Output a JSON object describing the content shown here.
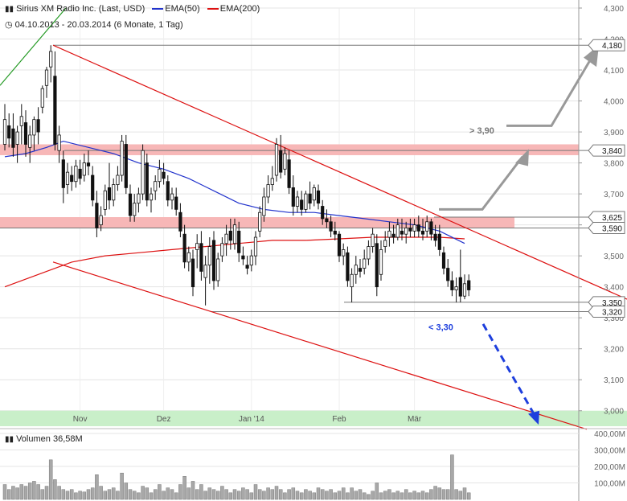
{
  "header": {
    "instrument": "Sirius XM Radio Inc. (Last, USD)",
    "legend_ema50": "EMA(50)",
    "legend_ema200": "EMA(200)",
    "date_range": "04.10.2013 - 20.03.2014 (6 Monate, 1 Tag)",
    "volume_label": "Volumen",
    "volume_value": "36,58M"
  },
  "colors": {
    "ema50": "#2233cc",
    "ema200": "#dd1111",
    "trend": "#dd1111",
    "green_line": "#229922",
    "zone": "#f7b7b7",
    "support_zone": "#c9efc9",
    "arrow_grey": "#999999",
    "arrow_blue": "#1e3fdd",
    "candle": "#111111",
    "volume_bar": "#a8a8a8"
  },
  "chart_data": {
    "type": "candlestick",
    "x_axis_labels": [
      "Nov",
      "Dez",
      "Jan '14",
      "Feb",
      "Mär"
    ],
    "y_axis_ticks": [
      "4,300",
      "4,200",
      "4,100",
      "4,000",
      "3,900",
      "3,800",
      "3,700",
      "3,600",
      "3,500",
      "3,400",
      "3,300",
      "3,200",
      "3,100",
      "3,000"
    ],
    "y_range": [
      2.95,
      4.3
    ],
    "price_labels": [
      "4,180",
      "3,840",
      "3,625",
      "3,590",
      "3,350",
      "3,320"
    ],
    "annotations": [
      "> 3,90",
      "< 3,30"
    ],
    "resistance_zones": [
      [
        3.825,
        3.86
      ],
      [
        3.59,
        3.625
      ]
    ],
    "support_zone": [
      2.95,
      3.0
    ],
    "volume_axis_ticks": [
      "400,00M",
      "300,00M",
      "200,00M",
      "100,00M"
    ],
    "volume_range_millions": [
      0,
      400
    ],
    "candles": [
      {
        "o": 3.86,
        "h": 3.99,
        "l": 3.84,
        "c": 3.94
      },
      {
        "o": 3.92,
        "h": 3.96,
        "l": 3.85,
        "c": 3.88
      },
      {
        "o": 3.91,
        "h": 3.96,
        "l": 3.82,
        "c": 3.85
      },
      {
        "o": 3.86,
        "h": 3.92,
        "l": 3.8,
        "c": 3.9
      },
      {
        "o": 3.92,
        "h": 3.99,
        "l": 3.86,
        "c": 3.95
      },
      {
        "o": 3.93,
        "h": 3.97,
        "l": 3.82,
        "c": 3.86
      },
      {
        "o": 3.85,
        "h": 3.92,
        "l": 3.8,
        "c": 3.89
      },
      {
        "o": 3.89,
        "h": 3.95,
        "l": 3.84,
        "c": 3.94
      },
      {
        "o": 3.94,
        "h": 3.98,
        "l": 3.86,
        "c": 3.9
      },
      {
        "o": 3.98,
        "h": 4.05,
        "l": 3.96,
        "c": 4.04
      },
      {
        "o": 4.05,
        "h": 4.11,
        "l": 4.01,
        "c": 4.1
      },
      {
        "o": 4.11,
        "h": 4.18,
        "l": 4.06,
        "c": 4.16
      },
      {
        "o": 4.08,
        "h": 4.16,
        "l": 3.84,
        "c": 3.86
      },
      {
        "o": 3.84,
        "h": 3.92,
        "l": 3.8,
        "c": 3.89
      },
      {
        "o": 3.81,
        "h": 3.84,
        "l": 3.67,
        "c": 3.72
      },
      {
        "o": 3.73,
        "h": 3.8,
        "l": 3.7,
        "c": 3.77
      },
      {
        "o": 3.76,
        "h": 3.79,
        "l": 3.71,
        "c": 3.74
      },
      {
        "o": 3.74,
        "h": 3.81,
        "l": 3.72,
        "c": 3.79
      },
      {
        "o": 3.78,
        "h": 3.81,
        "l": 3.73,
        "c": 3.75
      },
      {
        "o": 3.76,
        "h": 3.83,
        "l": 3.74,
        "c": 3.8
      },
      {
        "o": 3.8,
        "h": 3.84,
        "l": 3.76,
        "c": 3.79
      },
      {
        "o": 3.76,
        "h": 3.79,
        "l": 3.66,
        "c": 3.68
      },
      {
        "o": 3.67,
        "h": 3.71,
        "l": 3.56,
        "c": 3.59
      },
      {
        "o": 3.6,
        "h": 3.66,
        "l": 3.58,
        "c": 3.63
      },
      {
        "o": 3.65,
        "h": 3.73,
        "l": 3.63,
        "c": 3.71
      },
      {
        "o": 3.72,
        "h": 3.8,
        "l": 3.65,
        "c": 3.68
      },
      {
        "o": 3.68,
        "h": 3.75,
        "l": 3.66,
        "c": 3.73
      },
      {
        "o": 3.73,
        "h": 3.79,
        "l": 3.71,
        "c": 3.76
      },
      {
        "o": 3.76,
        "h": 3.89,
        "l": 3.74,
        "c": 3.87
      },
      {
        "o": 3.86,
        "h": 3.89,
        "l": 3.7,
        "c": 3.72
      },
      {
        "o": 3.7,
        "h": 3.73,
        "l": 3.61,
        "c": 3.63
      },
      {
        "o": 3.63,
        "h": 3.7,
        "l": 3.61,
        "c": 3.67
      },
      {
        "o": 3.67,
        "h": 3.72,
        "l": 3.64,
        "c": 3.7
      },
      {
        "o": 3.7,
        "h": 3.86,
        "l": 3.68,
        "c": 3.84
      },
      {
        "o": 3.8,
        "h": 3.83,
        "l": 3.66,
        "c": 3.68
      },
      {
        "o": 3.68,
        "h": 3.72,
        "l": 3.64,
        "c": 3.7
      },
      {
        "o": 3.71,
        "h": 3.76,
        "l": 3.68,
        "c": 3.74
      },
      {
        "o": 3.74,
        "h": 3.81,
        "l": 3.72,
        "c": 3.78
      },
      {
        "o": 3.77,
        "h": 3.8,
        "l": 3.73,
        "c": 3.75
      },
      {
        "o": 3.74,
        "h": 3.76,
        "l": 3.66,
        "c": 3.68
      },
      {
        "o": 3.68,
        "h": 3.72,
        "l": 3.65,
        "c": 3.7
      },
      {
        "o": 3.69,
        "h": 3.72,
        "l": 3.63,
        "c": 3.65
      },
      {
        "o": 3.64,
        "h": 3.67,
        "l": 3.56,
        "c": 3.58
      },
      {
        "o": 3.57,
        "h": 3.6,
        "l": 3.46,
        "c": 3.48
      },
      {
        "o": 3.48,
        "h": 3.53,
        "l": 3.45,
        "c": 3.51
      },
      {
        "o": 3.49,
        "h": 3.52,
        "l": 3.37,
        "c": 3.4
      },
      {
        "o": 3.52,
        "h": 3.57,
        "l": 3.46,
        "c": 3.54
      },
      {
        "o": 3.54,
        "h": 3.58,
        "l": 3.42,
        "c": 3.45
      },
      {
        "o": 3.43,
        "h": 3.5,
        "l": 3.34,
        "c": 3.47
      },
      {
        "o": 3.47,
        "h": 3.56,
        "l": 3.41,
        "c": 3.53
      },
      {
        "o": 3.55,
        "h": 3.58,
        "l": 3.39,
        "c": 3.42
      },
      {
        "o": 3.42,
        "h": 3.51,
        "l": 3.4,
        "c": 3.49
      },
      {
        "o": 3.5,
        "h": 3.56,
        "l": 3.48,
        "c": 3.54
      },
      {
        "o": 3.54,
        "h": 3.6,
        "l": 3.5,
        "c": 3.57
      },
      {
        "o": 3.58,
        "h": 3.62,
        "l": 3.52,
        "c": 3.55
      },
      {
        "o": 3.54,
        "h": 3.62,
        "l": 3.52,
        "c": 3.6
      },
      {
        "o": 3.58,
        "h": 3.61,
        "l": 3.48,
        "c": 3.51
      },
      {
        "o": 3.5,
        "h": 3.53,
        "l": 3.47,
        "c": 3.49
      },
      {
        "o": 3.47,
        "h": 3.5,
        "l": 3.44,
        "c": 3.46
      },
      {
        "o": 3.47,
        "h": 3.52,
        "l": 3.45,
        "c": 3.5
      },
      {
        "o": 3.5,
        "h": 3.58,
        "l": 3.47,
        "c": 3.56
      },
      {
        "o": 3.58,
        "h": 3.66,
        "l": 3.56,
        "c": 3.64
      },
      {
        "o": 3.63,
        "h": 3.72,
        "l": 3.61,
        "c": 3.69
      },
      {
        "o": 3.69,
        "h": 3.76,
        "l": 3.67,
        "c": 3.73
      },
      {
        "o": 3.73,
        "h": 3.79,
        "l": 3.71,
        "c": 3.75
      },
      {
        "o": 3.76,
        "h": 3.88,
        "l": 3.74,
        "c": 3.86
      },
      {
        "o": 3.84,
        "h": 3.89,
        "l": 3.75,
        "c": 3.77
      },
      {
        "o": 3.78,
        "h": 3.85,
        "l": 3.76,
        "c": 3.83
      },
      {
        "o": 3.81,
        "h": 3.84,
        "l": 3.7,
        "c": 3.72
      },
      {
        "o": 3.72,
        "h": 3.76,
        "l": 3.63,
        "c": 3.66
      },
      {
        "o": 3.66,
        "h": 3.71,
        "l": 3.64,
        "c": 3.69
      },
      {
        "o": 3.68,
        "h": 3.71,
        "l": 3.63,
        "c": 3.65
      },
      {
        "o": 3.65,
        "h": 3.71,
        "l": 3.64,
        "c": 3.7
      },
      {
        "o": 3.7,
        "h": 3.74,
        "l": 3.65,
        "c": 3.67
      },
      {
        "o": 3.68,
        "h": 3.73,
        "l": 3.66,
        "c": 3.72
      },
      {
        "o": 3.71,
        "h": 3.73,
        "l": 3.65,
        "c": 3.67
      },
      {
        "o": 3.66,
        "h": 3.68,
        "l": 3.6,
        "c": 3.62
      },
      {
        "o": 3.62,
        "h": 3.65,
        "l": 3.59,
        "c": 3.61
      },
      {
        "o": 3.61,
        "h": 3.63,
        "l": 3.56,
        "c": 3.58
      },
      {
        "o": 3.58,
        "h": 3.61,
        "l": 3.55,
        "c": 3.57
      },
      {
        "o": 3.57,
        "h": 3.58,
        "l": 3.48,
        "c": 3.5
      },
      {
        "o": 3.5,
        "h": 3.54,
        "l": 3.47,
        "c": 3.52
      },
      {
        "o": 3.51,
        "h": 3.53,
        "l": 3.4,
        "c": 3.42
      },
      {
        "o": 3.4,
        "h": 3.46,
        "l": 3.35,
        "c": 3.44
      },
      {
        "o": 3.44,
        "h": 3.5,
        "l": 3.41,
        "c": 3.47
      },
      {
        "o": 3.46,
        "h": 3.49,
        "l": 3.43,
        "c": 3.45
      },
      {
        "o": 3.46,
        "h": 3.52,
        "l": 3.44,
        "c": 3.49
      },
      {
        "o": 3.49,
        "h": 3.55,
        "l": 3.47,
        "c": 3.53
      },
      {
        "o": 3.53,
        "h": 3.59,
        "l": 3.51,
        "c": 3.57
      },
      {
        "o": 3.54,
        "h": 3.57,
        "l": 3.37,
        "c": 3.4
      },
      {
        "o": 3.44,
        "h": 3.55,
        "l": 3.42,
        "c": 3.52
      },
      {
        "o": 3.53,
        "h": 3.58,
        "l": 3.51,
        "c": 3.55
      },
      {
        "o": 3.56,
        "h": 3.61,
        "l": 3.53,
        "c": 3.58
      },
      {
        "o": 3.57,
        "h": 3.6,
        "l": 3.54,
        "c": 3.56
      },
      {
        "o": 3.56,
        "h": 3.62,
        "l": 3.55,
        "c": 3.6
      },
      {
        "o": 3.58,
        "h": 3.62,
        "l": 3.55,
        "c": 3.57
      },
      {
        "o": 3.57,
        "h": 3.61,
        "l": 3.54,
        "c": 3.59
      },
      {
        "o": 3.59,
        "h": 3.62,
        "l": 3.56,
        "c": 3.58
      },
      {
        "o": 3.58,
        "h": 3.62,
        "l": 3.56,
        "c": 3.6
      },
      {
        "o": 3.6,
        "h": 3.63,
        "l": 3.56,
        "c": 3.58
      },
      {
        "o": 3.58,
        "h": 3.62,
        "l": 3.55,
        "c": 3.57
      },
      {
        "o": 3.58,
        "h": 3.63,
        "l": 3.56,
        "c": 3.61
      },
      {
        "o": 3.61,
        "h": 3.62,
        "l": 3.55,
        "c": 3.57
      },
      {
        "o": 3.57,
        "h": 3.6,
        "l": 3.53,
        "c": 3.55
      },
      {
        "o": 3.57,
        "h": 3.6,
        "l": 3.5,
        "c": 3.52
      },
      {
        "o": 3.51,
        "h": 3.53,
        "l": 3.44,
        "c": 3.46
      },
      {
        "o": 3.46,
        "h": 3.49,
        "l": 3.4,
        "c": 3.42
      },
      {
        "o": 3.42,
        "h": 3.45,
        "l": 3.37,
        "c": 3.39
      },
      {
        "o": 3.39,
        "h": 3.43,
        "l": 3.35,
        "c": 3.4
      },
      {
        "o": 3.43,
        "h": 3.52,
        "l": 3.35,
        "c": 3.37
      },
      {
        "o": 3.37,
        "h": 3.44,
        "l": 3.36,
        "c": 3.41
      },
      {
        "o": 3.42,
        "h": 3.44,
        "l": 3.37,
        "c": 3.39
      }
    ],
    "ema50": [
      [
        0,
        3.82
      ],
      [
        5,
        3.83
      ],
      [
        10,
        3.85
      ],
      [
        14,
        3.87
      ],
      [
        20,
        3.85
      ],
      [
        26,
        3.83
      ],
      [
        32,
        3.8
      ],
      [
        38,
        3.78
      ],
      [
        44,
        3.75
      ],
      [
        50,
        3.71
      ],
      [
        56,
        3.67
      ],
      [
        62,
        3.65
      ],
      [
        68,
        3.64
      ],
      [
        74,
        3.64
      ],
      [
        80,
        3.63
      ],
      [
        86,
        3.62
      ],
      [
        92,
        3.61
      ],
      [
        98,
        3.6
      ],
      [
        104,
        3.58
      ],
      [
        110,
        3.54
      ]
    ],
    "ema200": [
      [
        0,
        3.4
      ],
      [
        8,
        3.44
      ],
      [
        16,
        3.48
      ],
      [
        24,
        3.5
      ],
      [
        32,
        3.51
      ],
      [
        40,
        3.52
      ],
      [
        48,
        3.53
      ],
      [
        56,
        3.54
      ],
      [
        64,
        3.55
      ],
      [
        72,
        3.55
      ],
      [
        80,
        3.555
      ],
      [
        88,
        3.56
      ],
      [
        96,
        3.56
      ],
      [
        104,
        3.56
      ],
      [
        110,
        3.555
      ]
    ],
    "volume_millions": [
      90,
      60,
      80,
      70,
      90,
      80,
      100,
      110,
      90,
      60,
      80,
      240,
      120,
      80,
      60,
      50,
      60,
      40,
      50,
      45,
      60,
      70,
      150,
      80,
      50,
      60,
      70,
      50,
      160,
      100,
      60,
      50,
      40,
      80,
      70,
      40,
      60,
      90,
      50,
      70,
      60,
      40,
      90,
      140,
      70,
      110,
      60,
      90,
      50,
      70,
      60,
      50,
      80,
      60,
      40,
      60,
      50,
      70,
      60,
      40,
      90,
      60,
      50,
      70,
      60,
      80,
      60,
      40,
      60,
      70,
      50,
      40,
      60,
      50,
      40,
      70,
      60,
      50,
      60,
      40,
      50,
      70,
      40,
      70,
      50,
      60,
      40,
      30,
      50,
      100,
      40,
      50,
      60,
      40,
      50,
      40,
      60,
      40,
      50,
      40,
      50,
      40,
      60,
      80,
      70,
      60,
      60,
      270,
      60,
      50,
      70,
      40
    ]
  }
}
